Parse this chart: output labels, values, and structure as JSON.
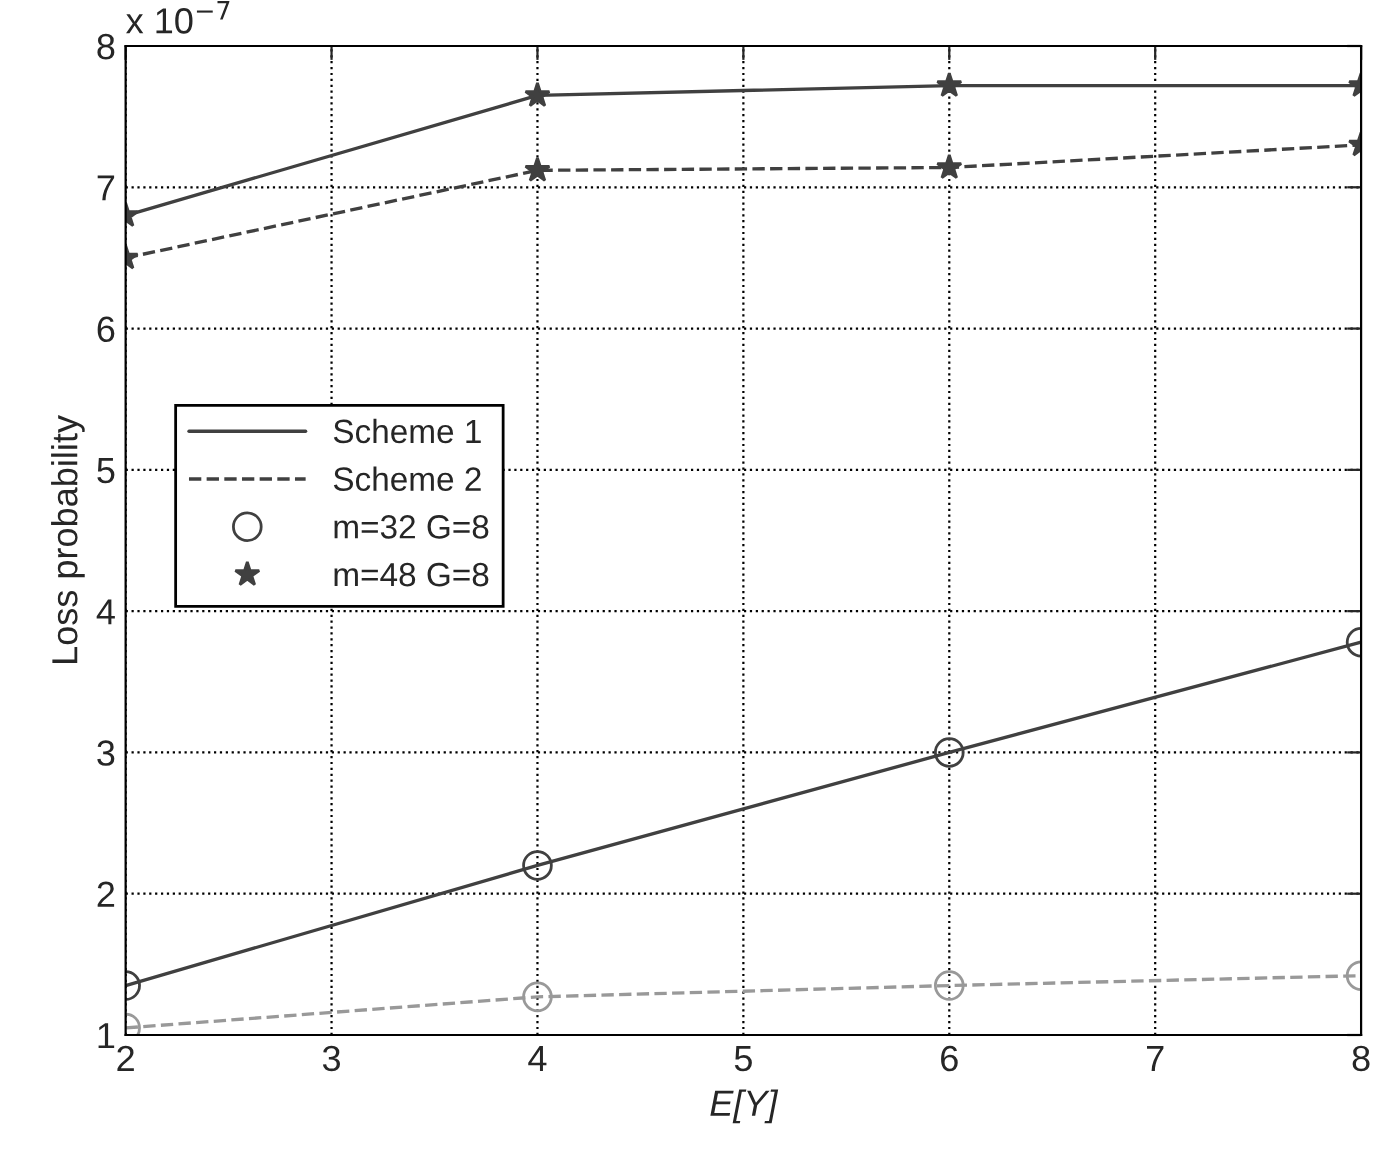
{
  "chart_data": {
    "type": "line",
    "xlabel": "E[Y]",
    "ylabel": "Loss probability",
    "x": [
      2,
      4,
      6,
      8
    ],
    "series": [
      {
        "color": "#404040",
        "line_style": "solid",
        "marker": "star",
        "values": [
          6.8,
          7.65,
          7.72,
          7.72
        ]
      },
      {
        "color": "#404040",
        "line_style": "dashed",
        "marker": "star",
        "values": [
          6.5,
          7.12,
          7.14,
          7.3
        ]
      },
      {
        "color": "#404040",
        "line_style": "solid",
        "marker": "circle",
        "values": [
          1.35,
          2.2,
          3.0,
          3.78
        ]
      },
      {
        "color": "#999999",
        "line_style": "dashed",
        "marker": "circle",
        "values": [
          1.05,
          1.27,
          1.35,
          1.42
        ]
      },
      {
        "name": "Scheme 1",
        "color": "#404040",
        "line_style": "solid",
        "marker": "none",
        "values": [
          null,
          null,
          null,
          null
        ]
      },
      {
        "name": "Scheme 2",
        "color": "#404040",
        "line_style": "dashed",
        "marker": "none",
        "values": [
          null,
          null,
          null,
          null
        ]
      },
      {
        "name": "m=32 G=8",
        "color": "#404040",
        "line_style": "none",
        "marker": "circle",
        "values": [
          null,
          null,
          null,
          null
        ]
      },
      {
        "name": "m=48 G=8",
        "color": "#404040",
        "line_style": "none",
        "marker": "star",
        "values": [
          null,
          null,
          null,
          null
        ]
      }
    ],
    "xlim": [
      2,
      8
    ],
    "xticks": [
      2,
      3,
      4,
      5,
      6,
      7,
      8
    ],
    "ylim": [
      1,
      8
    ],
    "yticks": [
      1,
      2,
      3,
      4,
      5,
      6,
      7,
      8
    ],
    "grid": true,
    "legend": "center left",
    "annotations": [
      "x 10$^{−7}$"
    ]
  }
}
